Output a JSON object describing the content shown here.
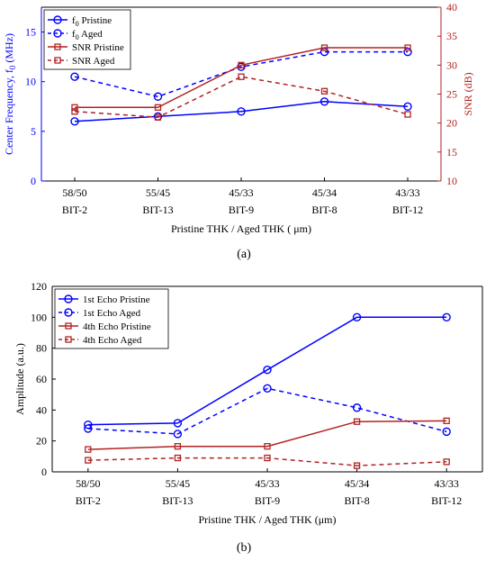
{
  "figure": {
    "panel_a_label": "(a)",
    "panel_b_label": "(b)"
  },
  "chart_data": [
    {
      "type": "line",
      "panel": "a",
      "title": "",
      "categories": [
        "58/50\nBIT-2",
        "55/45\nBIT-13",
        "45/33\nBIT-9",
        "45/34\nBIT-8",
        "43/33\nBIT-12"
      ],
      "xlabel": "Pristine THK / Aged THK ( μm)",
      "ylabel_left": "Center Frequency, f0 (MHz)",
      "ylabel_right": "SNR (dB)",
      "ylim_left": [
        0,
        17.5
      ],
      "yticks_left": [
        0,
        5,
        10,
        15
      ],
      "ylim_right": [
        10,
        40
      ],
      "yticks_right": [
        10,
        15,
        20,
        25,
        30,
        35,
        40
      ],
      "legend_position": "top-left",
      "grid": false,
      "series": [
        {
          "name": "f0 Pristine",
          "axis": "left",
          "color": "#0000ff",
          "style": "solid",
          "marker": "circle",
          "values": [
            6.0,
            6.5,
            7.0,
            8.0,
            7.5
          ]
        },
        {
          "name": "f0 Aged",
          "axis": "left",
          "color": "#0000ff",
          "style": "dashed",
          "marker": "circle",
          "values": [
            10.5,
            8.5,
            11.5,
            13.0,
            13.0
          ]
        },
        {
          "name": "SNR Pristine",
          "axis": "right",
          "color": "#b22222",
          "style": "solid",
          "marker": "square",
          "values": [
            22.7,
            22.7,
            30.0,
            33.0,
            33.0
          ]
        },
        {
          "name": "SNR Aged",
          "axis": "right",
          "color": "#b22222",
          "style": "dashed",
          "marker": "square",
          "values": [
            22.0,
            21.0,
            28.0,
            25.5,
            21.5
          ]
        }
      ]
    },
    {
      "type": "line",
      "panel": "b",
      "title": "",
      "categories": [
        "58/50\nBIT-2",
        "55/45\nBIT-13",
        "45/33\nBIT-9",
        "45/34\nBIT-8",
        "43/33\nBIT-12"
      ],
      "xlabel": "Pristine THK / Aged THK (μm)",
      "ylabel": "Amplitude (a.u.)",
      "ylim": [
        0,
        120
      ],
      "yticks": [
        0,
        20,
        40,
        60,
        80,
        100,
        120
      ],
      "legend_position": "top-left",
      "grid": false,
      "series": [
        {
          "name": "1st Echo Pristine",
          "color": "#0000ff",
          "style": "solid",
          "marker": "circle",
          "values": [
            30.5,
            31.5,
            66,
            100,
            100
          ]
        },
        {
          "name": "1st Echo Aged",
          "color": "#0000ff",
          "style": "dashed",
          "marker": "circle",
          "values": [
            28,
            24.5,
            54,
            41.5,
            26
          ]
        },
        {
          "name": "4th Echo Pristine",
          "color": "#b22222",
          "style": "solid",
          "marker": "square",
          "values": [
            14.5,
            16.5,
            16.5,
            32.5,
            33
          ]
        },
        {
          "name": "4th Echo Aged",
          "color": "#b22222",
          "style": "dashed",
          "marker": "square",
          "values": [
            7.5,
            9,
            9,
            4,
            6.5
          ]
        }
      ]
    }
  ]
}
